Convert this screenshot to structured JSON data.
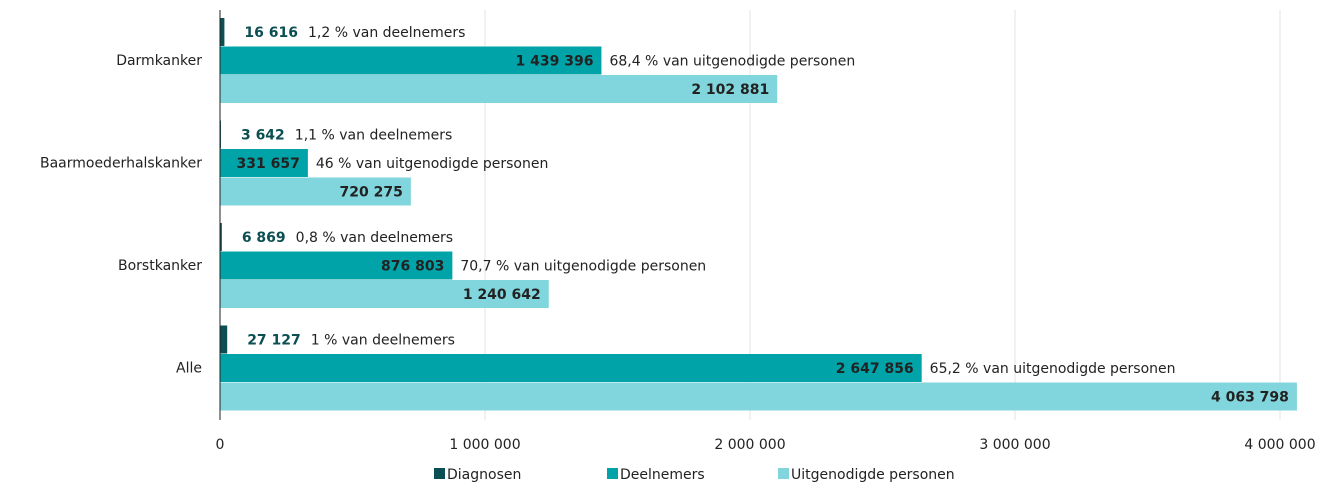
{
  "chart_data": {
    "type": "bar",
    "orientation": "horizontal",
    "categories": [
      "Darmkanker",
      "Baarmoederhalskanker",
      "Borstkanker",
      "Alle"
    ],
    "series": [
      {
        "name": "Diagnosen",
        "color": "#0b4f52",
        "values": [
          16616,
          3642,
          6869,
          27127
        ],
        "value_labels": [
          "16 616",
          "3 642",
          "6 869",
          "27 127"
        ],
        "annotations": [
          "1,2 % van deelnemers",
          "1,1 % van deelnemers",
          "0,8 % van deelnemers",
          "1 % van deelnemers"
        ]
      },
      {
        "name": "Deelnemers",
        "color": "#00a3a8",
        "values": [
          1439396,
          331657,
          876803,
          2647856
        ],
        "value_labels": [
          "1 439 396",
          "331 657",
          "876 803",
          "2 647 856"
        ],
        "annotations": [
          "68,4 % van uitgenodigde personen",
          "46 % van uitgenodigde personen",
          "70,7 % van uitgenodigde personen",
          "65,2 % van uitgenodigde personen"
        ]
      },
      {
        "name": "Uitgenodigde personen",
        "color": "#80d6dc",
        "values": [
          2102881,
          720275,
          1240642,
          4063798
        ],
        "value_labels": [
          "2 102 881",
          "720 275",
          "1 240 642",
          "4 063 798"
        ]
      }
    ],
    "xlim": [
      0,
      4100000
    ],
    "xticks": [
      0,
      {
        "value": 1000000,
        "label": "1 000 000"
      },
      {
        "value": 2000000,
        "label": "2 000 000"
      },
      {
        "value": 3000000,
        "label": "3 000 000"
      },
      {
        "value": 4000000,
        "label": "4 000 000"
      }
    ],
    "grid": true,
    "legend": "bottom"
  }
}
